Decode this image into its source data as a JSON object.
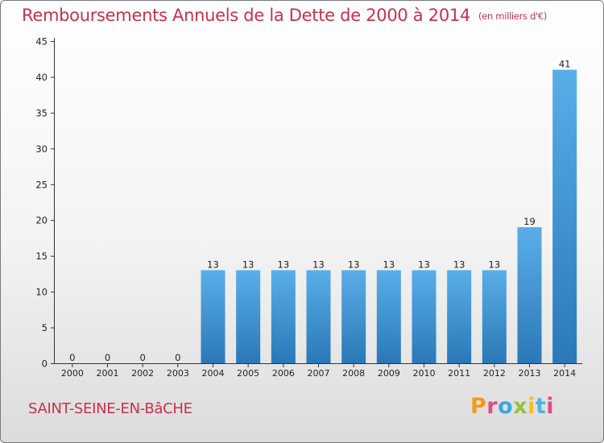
{
  "title": "Remboursements Annuels de la Dette de 2000 à 2014",
  "unit": "(en milliers d'€)",
  "commune": "SAINT-SEINE-EN-BâCHE",
  "logo": {
    "letters": [
      "P",
      "r",
      "o",
      "x",
      "i",
      "t",
      "i"
    ]
  },
  "colors": {
    "title": "#c8324a",
    "bar_top": "#5aaee8",
    "bar_bottom": "#2a78b8",
    "axis": "#333333"
  },
  "chart_data": {
    "type": "bar",
    "categories": [
      "2000",
      "2001",
      "2002",
      "2003",
      "2004",
      "2005",
      "2006",
      "2007",
      "2008",
      "2009",
      "2010",
      "2011",
      "2012",
      "2013",
      "2014"
    ],
    "values": [
      0,
      0,
      0,
      0,
      13,
      13,
      13,
      13,
      13,
      13,
      13,
      13,
      13,
      19,
      41
    ],
    "title": "Remboursements Annuels de la Dette de 2000 à 2014",
    "ylim": [
      0,
      45
    ],
    "yticks": [
      0,
      5,
      10,
      15,
      20,
      25,
      30,
      35,
      40,
      45
    ],
    "grid": false,
    "data_labels": true
  }
}
